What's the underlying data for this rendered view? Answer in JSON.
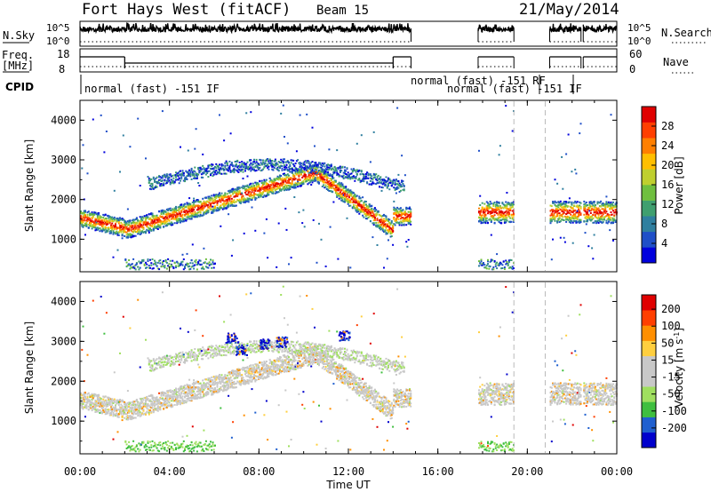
{
  "header": {
    "station": "Fort Hays West (fitACF)",
    "beam": "Beam 15",
    "date": "21/May/2014"
  },
  "colors": {
    "power_scale": [
      "#0000dd",
      "#1f4fc8",
      "#2f7f9f",
      "#3f9f6f",
      "#6fbf3f",
      "#bfcf2f",
      "#ffbf00",
      "#ff7f00",
      "#ff3f00",
      "#e00000"
    ],
    "velocity_scale": [
      "#0000cc",
      "#1f5fcf",
      "#3fbf3f",
      "#9fdf5f",
      "#c8c8c8",
      "#c8c8c8",
      "#ffcf3f",
      "#ff8f00",
      "#ff3f00",
      "#e00000"
    ]
  },
  "chart_data": [
    {
      "type": "line",
      "name": "sky-search-noise-panel",
      "left_label": "N.Sky",
      "left_ticks": [
        "10^5",
        "10^0"
      ],
      "right_label": "N.Search",
      "right_ticks": [
        "10^5",
        "10^0"
      ],
      "x_range_hours": [
        0,
        24
      ],
      "segments": [
        [
          0,
          14.8
        ],
        [
          17.8,
          19.4
        ],
        [
          21.0,
          22.4
        ],
        [
          22.5,
          24
        ]
      ]
    },
    {
      "type": "line",
      "name": "frequency-nave-panel",
      "left_label": "Freq.",
      "left_unit": "[MHz]",
      "left_ticks": [
        "18",
        "8"
      ],
      "right_label": "Nave",
      "right_ticks": [
        "60",
        "0"
      ],
      "cpid_label": "CPID",
      "cpid_annotations": [
        "normal (fast) -151 IF",
        "normal (fast) -151  RF",
        "normal (fast) -151 IF"
      ],
      "frequency_steps": [
        {
          "x0": 0,
          "x1": 2.0,
          "level": "high"
        },
        {
          "x0": 2.0,
          "x1": 14.0,
          "level": "low"
        },
        {
          "x0": 14.0,
          "x1": 14.8,
          "level": "high"
        },
        {
          "x0": 17.8,
          "x1": 19.4,
          "level": "high"
        },
        {
          "x0": 21.0,
          "x1": 22.4,
          "level": "high"
        },
        {
          "x0": 22.5,
          "x1": 24,
          "level": "high"
        }
      ]
    },
    {
      "type": "heatmap",
      "name": "power",
      "ylabel": "Slant Range [km]",
      "yticks": [
        1000,
        2000,
        3000,
        4000
      ],
      "ylim": [
        180,
        4500
      ],
      "xlim": [
        0,
        24
      ],
      "colorbar_label": "Power [dB]",
      "colorbar_ticks": [
        4,
        8,
        12,
        16,
        20,
        24,
        28
      ],
      "colorbar_range": [
        0,
        32
      ]
    },
    {
      "type": "heatmap",
      "name": "velocity",
      "ylabel": "Slant Range [km]",
      "yticks": [
        1000,
        2000,
        3000,
        4000
      ],
      "ylim": [
        180,
        4500
      ],
      "xlim": [
        0,
        24
      ],
      "xlabel": "Time UT",
      "xtick_labels": [
        "00:00",
        "04:00",
        "08:00",
        "12:00",
        "16:00",
        "20:00",
        "00:00"
      ],
      "xticks": [
        0,
        4,
        8,
        12,
        16,
        20,
        24
      ],
      "colorbar_label": "Velocity [m s",
      "colorbar_label_sup": "-1",
      "colorbar_label_end": "]",
      "colorbar_ticks": [
        200,
        100,
        50,
        15,
        -15,
        -50,
        -100,
        -200
      ]
    }
  ]
}
